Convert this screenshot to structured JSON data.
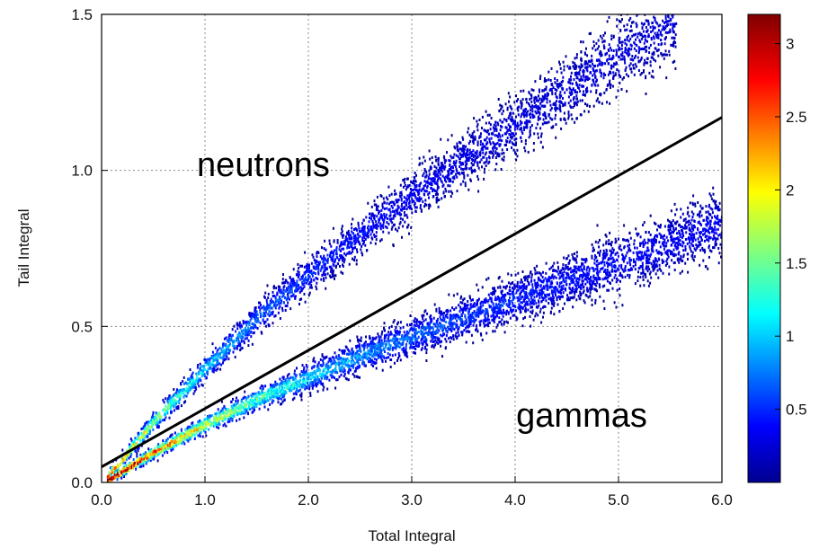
{
  "chart_data": {
    "type": "heatmap",
    "xlabel": "Total Integral",
    "ylabel": "Tail Integral",
    "xlim": [
      0.0,
      6.0
    ],
    "ylim": [
      0.0,
      1.5
    ],
    "x_ticks": [
      "0.0",
      "1.0",
      "2.0",
      "3.0",
      "4.0",
      "5.0",
      "6.0"
    ],
    "y_ticks": [
      "0.0",
      "0.5",
      "1.0",
      "1.5"
    ],
    "grid": true,
    "annotations": [
      {
        "text": "neutrons",
        "x": 1.55,
        "y": 0.98
      },
      {
        "text": "gammas",
        "x": 4.45,
        "y": 0.21
      }
    ],
    "discrimination_line": {
      "x": [
        0.0,
        6.0
      ],
      "y": [
        0.05,
        1.17
      ]
    },
    "bands": [
      {
        "name": "neutrons",
        "x": [
          0.0,
          0.5,
          1.0,
          1.5,
          2.0,
          2.5,
          3.0,
          3.5,
          4.0,
          4.5,
          5.0,
          5.5
        ],
        "y": [
          0.0,
          0.2,
          0.37,
          0.53,
          0.67,
          0.8,
          0.92,
          1.04,
          1.15,
          1.26,
          1.38,
          1.48
        ]
      },
      {
        "name": "gammas",
        "x": [
          0.0,
          0.5,
          1.0,
          1.5,
          2.0,
          2.5,
          3.0,
          3.5,
          4.0,
          4.5,
          5.0,
          5.5,
          6.0
        ],
        "y": [
          0.0,
          0.1,
          0.19,
          0.27,
          0.34,
          0.41,
          0.47,
          0.53,
          0.59,
          0.65,
          0.71,
          0.77,
          0.84
        ]
      }
    ],
    "colorbar": {
      "range": [
        0,
        3.2
      ],
      "ticks": [
        "0.5",
        "1",
        "1.5",
        "2",
        "2.5",
        "3"
      ],
      "tick_values": [
        0.5,
        1,
        1.5,
        2,
        2.5,
        3
      ],
      "colormap": [
        "#00008f",
        "#0000ff",
        "#00ffff",
        "#ffff00",
        "#ff0000",
        "#800000"
      ]
    }
  }
}
